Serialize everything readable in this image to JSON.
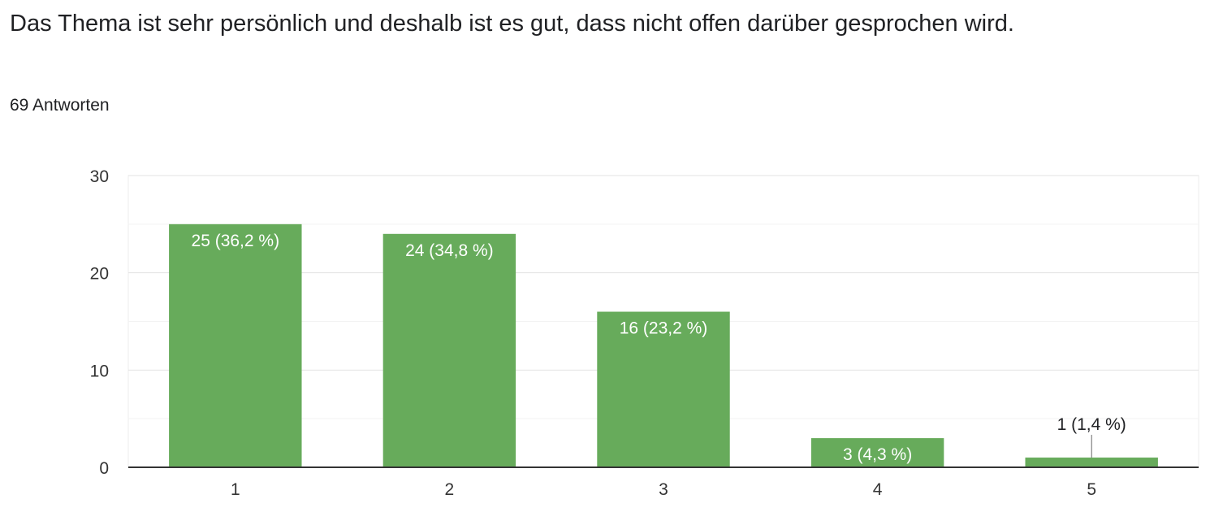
{
  "question": "Das Thema ist sehr persönlich und deshalb ist es gut, dass nicht offen darüber gesprochen wird.",
  "response_count": "69 Antworten",
  "colors": {
    "bar": "#67ab5b",
    "grid": "#ececec",
    "axis": "#333333"
  },
  "chart_data": {
    "type": "bar",
    "categories": [
      "1",
      "2",
      "3",
      "4",
      "5"
    ],
    "values": [
      25,
      24,
      16,
      3,
      1
    ],
    "data_labels": [
      "25 (36,2 %)",
      "24 (34,8 %)",
      "16 (23,2 %)",
      "3 (4,3 %)",
      "1 (1,4 %)"
    ],
    "ylim": [
      0,
      30
    ],
    "yticks": [
      0,
      10,
      20,
      30
    ],
    "grid": true,
    "legend": "none"
  }
}
